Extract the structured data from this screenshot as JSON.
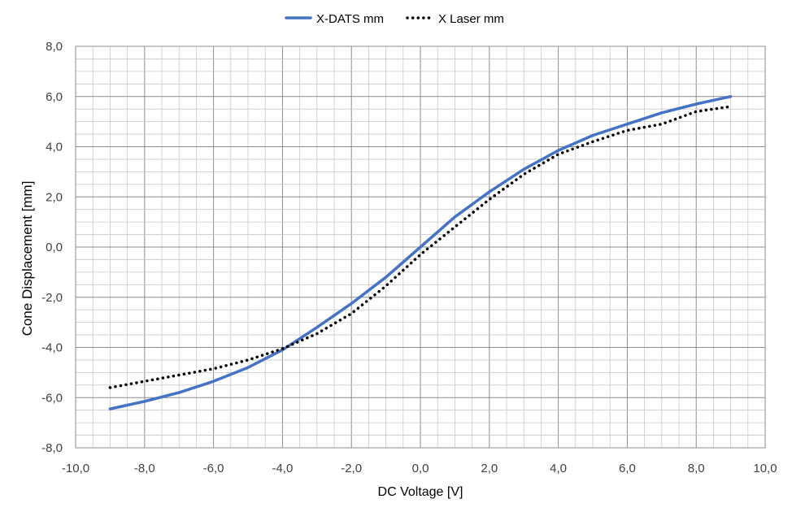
{
  "chart_data": {
    "type": "line",
    "title": "",
    "xlabel": "DC Voltage [V]",
    "ylabel": "Cone Displacement  [mm]",
    "xlim": [
      -10,
      10
    ],
    "ylim": [
      -8,
      8
    ],
    "x_major_step": 2,
    "y_major_step": 2,
    "x_minor_step": 0.5,
    "y_minor_step": 0.5,
    "grid": true,
    "legend_position": "top-center",
    "x_tick_labels": [
      "-10,0",
      "-8,0",
      "-6,0",
      "-4,0",
      "-2,0",
      "0,0",
      "2,0",
      "4,0",
      "6,0",
      "8,0",
      "10,0"
    ],
    "y_tick_labels": [
      "-8,0",
      "-6,0",
      "-4,0",
      "-2,0",
      "0,0",
      "2,0",
      "4,0",
      "6,0",
      "8,0"
    ],
    "series": [
      {
        "name": "X-DATS mm",
        "color": "#4472C4",
        "style": "solid",
        "x": [
          -9,
          -8,
          -7,
          -6,
          -5,
          -4,
          -3,
          -2,
          -1,
          0,
          1,
          2,
          3,
          4,
          5,
          6,
          7,
          8,
          9
        ],
        "y": [
          -6.45,
          -6.15,
          -5.8,
          -5.35,
          -4.8,
          -4.1,
          -3.2,
          -2.25,
          -1.2,
          0.0,
          1.2,
          2.2,
          3.1,
          3.85,
          4.45,
          4.9,
          5.35,
          5.7,
          6.0
        ]
      },
      {
        "name": "X Laser mm",
        "color": "#000000",
        "style": "dotted",
        "x": [
          -9,
          -8,
          -7,
          -6,
          -5,
          -4,
          -3,
          -2,
          -1,
          0,
          1,
          2,
          3,
          4,
          5,
          6,
          7,
          8,
          9
        ],
        "y": [
          -5.6,
          -5.35,
          -5.1,
          -4.85,
          -4.5,
          -4.05,
          -3.45,
          -2.65,
          -1.55,
          -0.3,
          0.8,
          1.9,
          2.9,
          3.7,
          4.2,
          4.65,
          4.9,
          5.4,
          5.6
        ]
      }
    ]
  }
}
